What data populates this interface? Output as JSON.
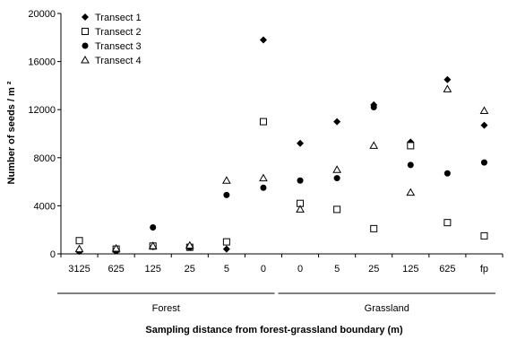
{
  "chart_data": {
    "type": "scatter",
    "title": "",
    "ylabel": "Number of seeds / m ²",
    "xlabel": "Sampling distance from forest-grassland boundary (m)",
    "ylim": [
      0,
      20000
    ],
    "yticks": [
      0,
      4000,
      8000,
      12000,
      16000,
      20000
    ],
    "yticklabels": [
      "0",
      "4000",
      "8000",
      "12000",
      "16000",
      "20000"
    ],
    "categories": [
      "3125",
      "625",
      "125",
      "25",
      "5",
      "0",
      "0",
      "5",
      "25",
      "125",
      "625",
      "fp"
    ],
    "groups": [
      {
        "label": "Forest",
        "from": 0,
        "to": 5
      },
      {
        "label": "Grassland",
        "from": 6,
        "to": 11
      }
    ],
    "legend_position": "top-left",
    "grid": false,
    "series": [
      {
        "name": "Transect 1",
        "marker": "filled-diamond",
        "values": [
          300,
          350,
          600,
          600,
          400,
          17800,
          9200,
          11000,
          12400,
          9300,
          14500,
          10700
        ]
      },
      {
        "name": "Transect 2",
        "marker": "open-square",
        "values": [
          1100,
          400,
          650,
          550,
          1000,
          11000,
          4200,
          3700,
          2100,
          9000,
          2600,
          1500
        ]
      },
      {
        "name": "Transect 3",
        "marker": "filled-circle",
        "values": [
          200,
          250,
          2200,
          550,
          4900,
          5500,
          6100,
          6300,
          12200,
          7400,
          6700,
          7600
        ]
      },
      {
        "name": "Transect 4",
        "marker": "open-triangle",
        "values": [
          400,
          450,
          650,
          700,
          6100,
          6300,
          3700,
          7000,
          9000,
          5100,
          13700,
          11900
        ]
      }
    ]
  }
}
